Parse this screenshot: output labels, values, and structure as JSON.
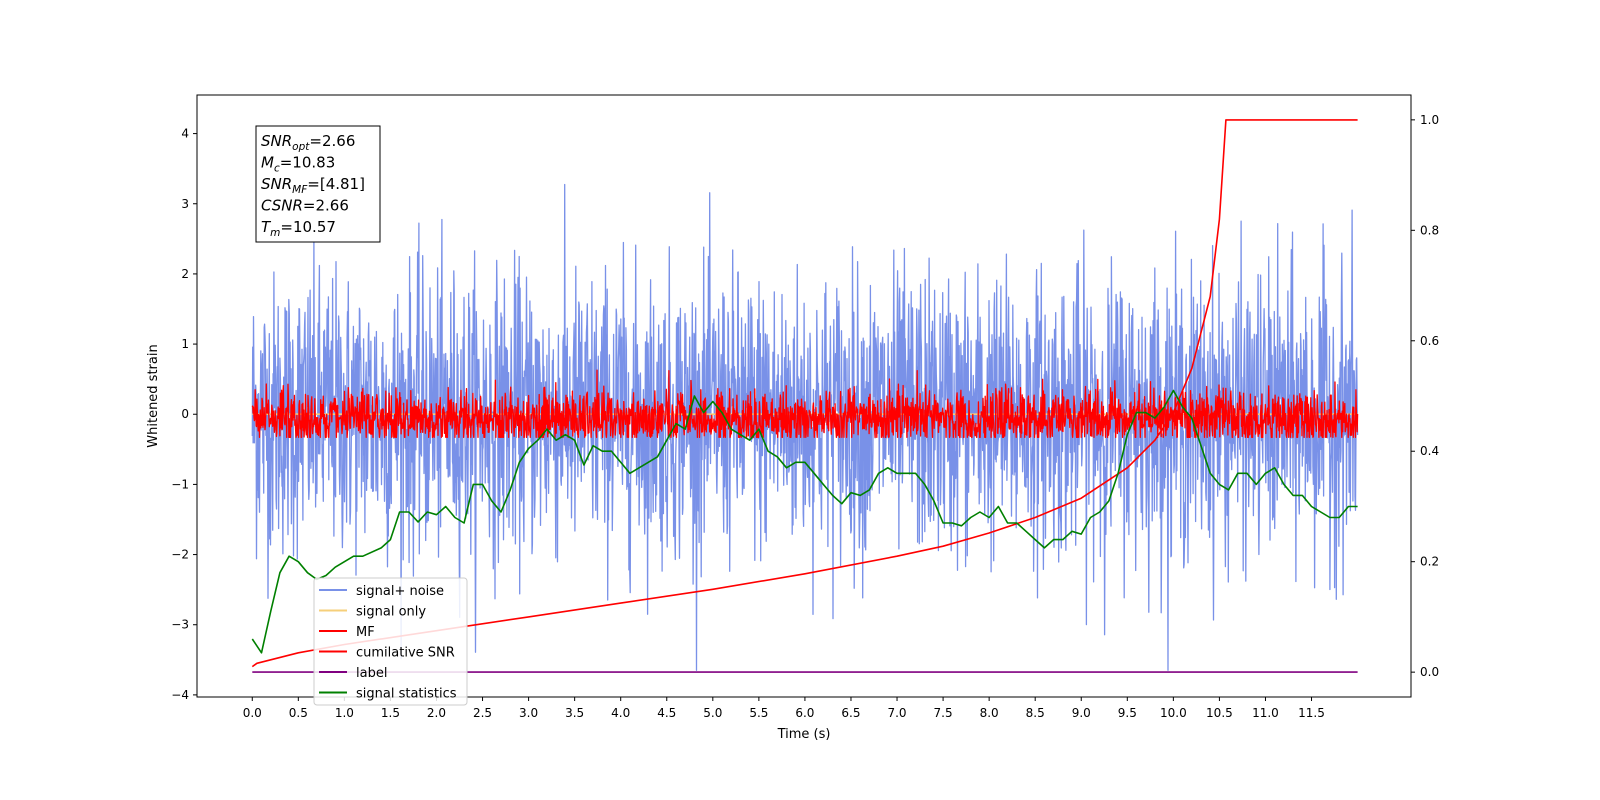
{
  "chart_data": {
    "type": "line",
    "xlabel": "Time (s)",
    "ylabel": "Whitened strain",
    "xlim": [
      -0.6,
      12.58
    ],
    "ylim_left": [
      -4.03,
      4.55
    ],
    "ylim_right": [
      -0.045,
      1.045
    ],
    "x_ticks": [
      0.0,
      0.5,
      1.0,
      1.5,
      2.0,
      2.5,
      3.0,
      3.5,
      4.0,
      4.5,
      5.0,
      5.5,
      6.0,
      6.5,
      7.0,
      7.5,
      8.0,
      8.5,
      9.0,
      9.5,
      10.0,
      10.5,
      11.0,
      11.5
    ],
    "x_tick_labels": [
      "0.0",
      "0.5",
      "1.0",
      "1.5",
      "2.0",
      "2.5",
      "3.0",
      "3.5",
      "4.0",
      "4.5",
      "5.0",
      "5.5",
      "6.0",
      "6.5",
      "7.0",
      "7.5",
      "8.0",
      "8.5",
      "9.0",
      "9.5",
      "10.0",
      "10.5",
      "11.0",
      "11.5"
    ],
    "y_left_ticks": [
      -4,
      -3,
      -2,
      -1,
      0,
      1,
      2,
      3,
      4
    ],
    "y_left_tick_labels": [
      "−4",
      "−3",
      "−2",
      "−1",
      "0",
      "1",
      "2",
      "3",
      "4"
    ],
    "y_right_ticks": [
      0.0,
      0.2,
      0.4,
      0.6,
      0.8,
      1.0
    ],
    "y_right_tick_labels": [
      "0.0",
      "0.2",
      "0.4",
      "0.6",
      "0.8",
      "1.0"
    ],
    "grid": false,
    "legend_placement": "lower-left",
    "annotation_lines": [
      {
        "label": "SNR",
        "sub": "opt",
        "value": "=2.66"
      },
      {
        "label": "M",
        "sub": "c",
        "value": "=10.83"
      },
      {
        "label": "SNR",
        "sub": "MF",
        "value": "=[4.81]"
      },
      {
        "label": "CSNR",
        "sub": "",
        "value": "=2.66"
      },
      {
        "label": "T",
        "sub": "m",
        "value": "=10.57"
      }
    ],
    "series": [
      {
        "name": "signal+ noise",
        "axis": "left",
        "color": "#7991e8",
        "kind": "noise",
        "x_range": [
          0.0,
          12.0
        ],
        "amplitude_std": 1.0,
        "center": 0.0
      },
      {
        "name": "signal only",
        "axis": "left",
        "color": "#f6cf7a",
        "kind": "flat",
        "x": [
          0.0,
          12.0
        ],
        "y": [
          0.0,
          0.0
        ]
      },
      {
        "name": "MF",
        "axis": "left",
        "color": "#ff0000",
        "kind": "noise",
        "x_range": [
          0.0,
          12.0
        ],
        "amplitude_std": 0.2,
        "center": 0.0
      },
      {
        "name": "cumilative SNR",
        "axis": "right",
        "color": "#ff0000",
        "kind": "line",
        "x": [
          0.0,
          0.05,
          0.5,
          1.0,
          2.0,
          3.0,
          4.0,
          5.0,
          6.0,
          7.0,
          7.5,
          8.0,
          8.5,
          9.0,
          9.5,
          9.8,
          10.0,
          10.2,
          10.4,
          10.5,
          10.57,
          12.0
        ],
        "y": [
          0.01,
          0.016,
          0.035,
          0.05,
          0.075,
          0.1,
          0.125,
          0.15,
          0.178,
          0.21,
          0.228,
          0.252,
          0.28,
          0.315,
          0.37,
          0.42,
          0.47,
          0.55,
          0.68,
          0.82,
          1.0,
          1.0
        ]
      },
      {
        "name": "label",
        "axis": "right",
        "color": "#800080",
        "kind": "line",
        "x": [
          0.0,
          12.0
        ],
        "y": [
          0.0,
          0.0
        ]
      },
      {
        "name": "signal statistics",
        "axis": "right",
        "color": "#008000",
        "kind": "line",
        "x": [
          0.0,
          0.1,
          0.2,
          0.3,
          0.4,
          0.5,
          0.6,
          0.7,
          0.8,
          0.9,
          1.0,
          1.1,
          1.2,
          1.4,
          1.5,
          1.6,
          1.7,
          1.8,
          1.9,
          2.0,
          2.1,
          2.2,
          2.3,
          2.4,
          2.5,
          2.6,
          2.7,
          2.8,
          2.9,
          3.0,
          3.1,
          3.2,
          3.3,
          3.4,
          3.5,
          3.6,
          3.7,
          3.8,
          3.9,
          4.0,
          4.1,
          4.2,
          4.3,
          4.4,
          4.5,
          4.6,
          4.7,
          4.8,
          4.9,
          5.0,
          5.1,
          5.2,
          5.3,
          5.4,
          5.5,
          5.6,
          5.7,
          5.8,
          5.9,
          6.0,
          6.1,
          6.2,
          6.3,
          6.4,
          6.5,
          6.6,
          6.7,
          6.8,
          6.9,
          7.0,
          7.1,
          7.2,
          7.3,
          7.4,
          7.5,
          7.6,
          7.7,
          7.8,
          7.9,
          8.0,
          8.1,
          8.2,
          8.3,
          8.4,
          8.5,
          8.6,
          8.7,
          8.8,
          8.9,
          9.0,
          9.1,
          9.2,
          9.3,
          9.4,
          9.5,
          9.6,
          9.7,
          9.8,
          9.9,
          10.0,
          10.1,
          10.2,
          10.3,
          10.4,
          10.5,
          10.6,
          10.7,
          10.8,
          10.9,
          11.0,
          11.1,
          11.2,
          11.3,
          11.4,
          11.5,
          11.6,
          11.7,
          11.8,
          11.9,
          12.0
        ],
        "y": [
          0.06,
          0.035,
          0.11,
          0.18,
          0.21,
          0.2,
          0.18,
          0.168,
          0.175,
          0.19,
          0.2,
          0.21,
          0.21,
          0.225,
          0.24,
          0.29,
          0.29,
          0.272,
          0.29,
          0.285,
          0.3,
          0.28,
          0.27,
          0.34,
          0.34,
          0.31,
          0.29,
          0.33,
          0.38,
          0.405,
          0.42,
          0.44,
          0.42,
          0.43,
          0.42,
          0.375,
          0.41,
          0.4,
          0.4,
          0.38,
          0.36,
          0.37,
          0.38,
          0.39,
          0.42,
          0.45,
          0.44,
          0.5,
          0.47,
          0.49,
          0.47,
          0.44,
          0.43,
          0.42,
          0.44,
          0.4,
          0.39,
          0.37,
          0.38,
          0.38,
          0.36,
          0.34,
          0.32,
          0.305,
          0.325,
          0.32,
          0.33,
          0.36,
          0.37,
          0.36,
          0.36,
          0.36,
          0.34,
          0.31,
          0.27,
          0.27,
          0.265,
          0.28,
          0.29,
          0.28,
          0.3,
          0.27,
          0.27,
          0.255,
          0.24,
          0.225,
          0.24,
          0.24,
          0.255,
          0.25,
          0.28,
          0.29,
          0.31,
          0.36,
          0.43,
          0.47,
          0.47,
          0.46,
          0.48,
          0.51,
          0.48,
          0.46,
          0.41,
          0.36,
          0.34,
          0.33,
          0.36,
          0.36,
          0.34,
          0.36,
          0.37,
          0.34,
          0.32,
          0.32,
          0.3,
          0.29,
          0.28,
          0.28,
          0.3,
          0.3
        ]
      }
    ]
  }
}
